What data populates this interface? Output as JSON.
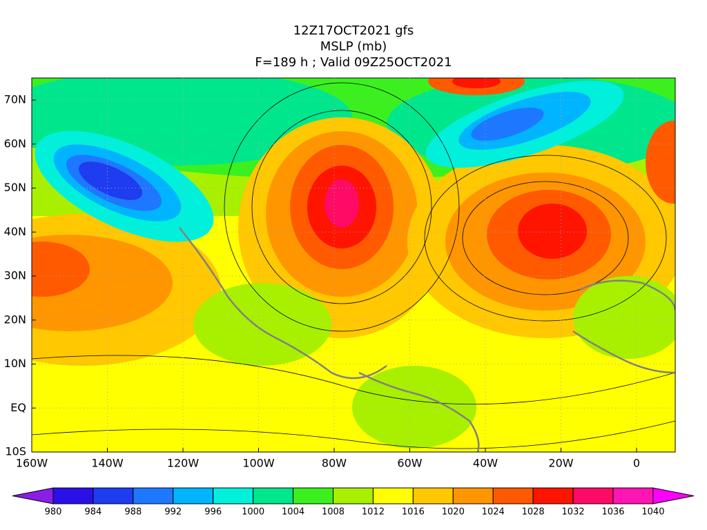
{
  "title": {
    "lines": [
      "12Z17OCT2021 gfs",
      "MSLP (mb)",
      "F=189 h ; Valid 09Z25OCT2021"
    ]
  },
  "map": {
    "x_labels": [
      "160W",
      "140W",
      "120W",
      "100W",
      "80W",
      "60W",
      "40W",
      "20W",
      "0"
    ],
    "y_labels": [
      "70N",
      "60N",
      "50N",
      "40N",
      "30N",
      "20N",
      "10N",
      "EQ",
      "10S"
    ]
  },
  "colorbar": {
    "labels": [
      980,
      984,
      988,
      992,
      996,
      1000,
      1004,
      1008,
      1012,
      1016,
      1020,
      1024,
      1028,
      1032,
      1036,
      1040
    ],
    "colors": [
      "#2a10e6",
      "#1e3cf0",
      "#1e78ff",
      "#00b4ff",
      "#00f0dc",
      "#00e68c",
      "#3cf020",
      "#a8f000",
      "#ffff00",
      "#ffc800",
      "#ff9600",
      "#ff5a00",
      "#ff1400",
      "#ff0a64",
      "#ff14b4"
    ],
    "under_color": "#8a1ee6",
    "over_color": "#ff00ff"
  }
}
